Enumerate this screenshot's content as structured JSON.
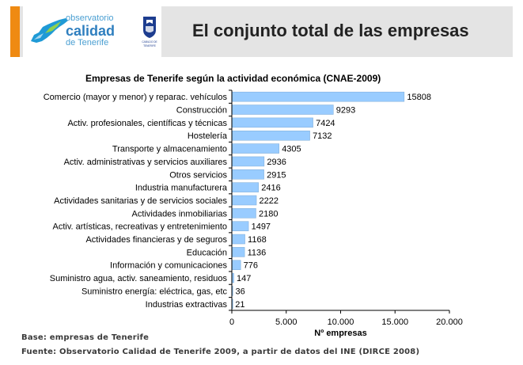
{
  "header": {
    "title": "El conjunto total de las empresas",
    "logo": {
      "line1": "observatorio",
      "line2": "calidad",
      "line3": "de Tenerife",
      "seal_text": "CABILDO DE TENERIFE"
    },
    "colors": {
      "accent": "#ef8a12",
      "band": "#e4e4e4",
      "logo_blue": "#2f7fbf"
    }
  },
  "chart_data": {
    "type": "bar",
    "orientation": "horizontal",
    "title": "Empresas de Tenerife según la actividad económica (CNAE-2009)",
    "xlabel": "Nº empresas",
    "ylabel": "",
    "xlim": [
      0,
      20000
    ],
    "xticks": [
      0,
      5000,
      10000,
      15000,
      20000
    ],
    "xtick_labels": [
      "0",
      "5.000",
      "10.000",
      "15.000",
      "20.000"
    ],
    "bar_color": "#99ccff",
    "categories": [
      "Comercio (mayor y menor) y reparac. vehículos",
      "Construcción",
      "Activ. profesionales, científicas y técnicas",
      "Hostelería",
      "Transporte y almacenamiento",
      "Activ. administrativas y servicios auxiliares",
      "Otros servicios",
      "Industria manufacturera",
      "Actividades sanitarias y de servicios sociales",
      "Actividades inmobiliarias",
      "Activ. artísticas, recreativas y entretenimiento",
      "Actividades financieras y de seguros",
      "Educación",
      "Información y comunicaciones",
      "Suministro agua, activ. saneamiento, residuos",
      "Suministro energía: eléctrica, gas, etc",
      "Industrias extractivas"
    ],
    "values": [
      15808,
      9293,
      7424,
      7132,
      4305,
      2936,
      2915,
      2416,
      2222,
      2180,
      1497,
      1168,
      1136,
      776,
      147,
      36,
      21
    ]
  },
  "notes": {
    "base": "Base: empresas de Tenerife",
    "source": "Fuente: Observatorio Calidad de Tenerife 2009, a partir de datos del INE (DIRCE 2008)"
  }
}
